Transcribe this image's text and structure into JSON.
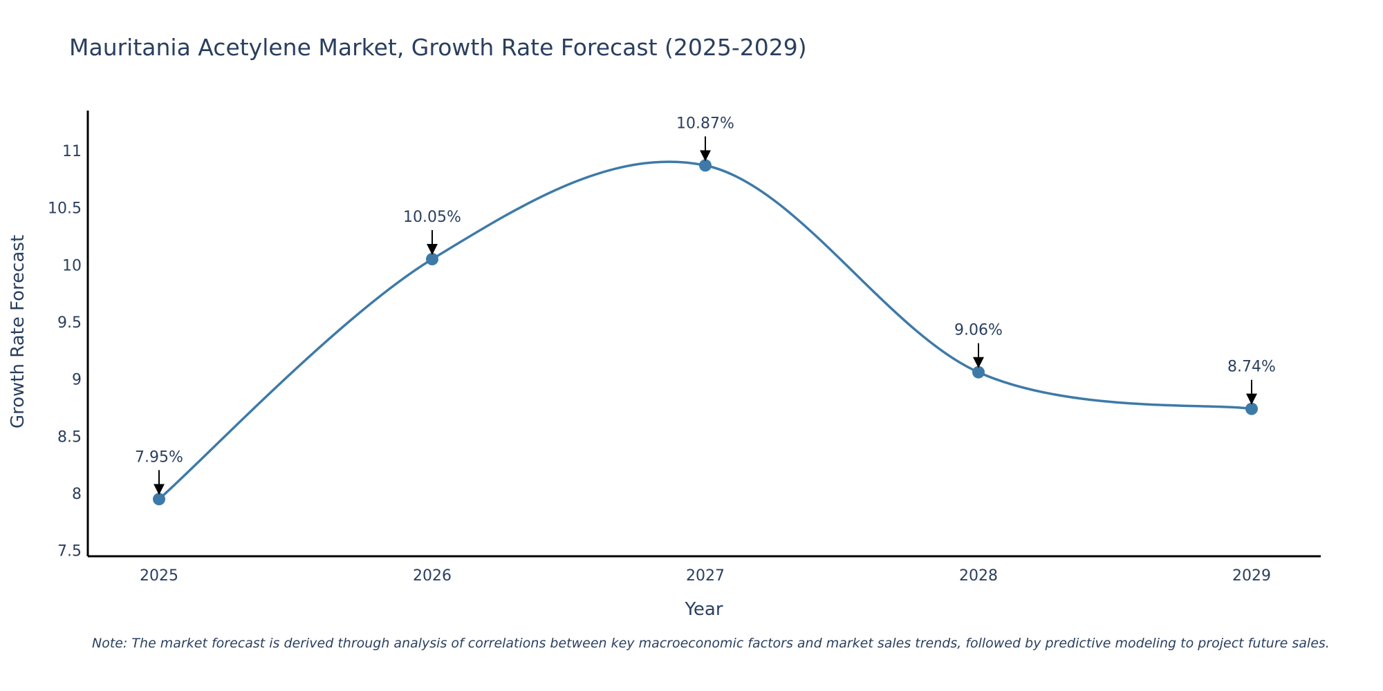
{
  "chart_data": {
    "type": "line",
    "title": "Mauritania Acetylene Market, Growth Rate Forecast (2025-2029)",
    "xlabel": "Year",
    "ylabel": "Growth Rate Forecast",
    "categories": [
      "2025",
      "2026",
      "2027",
      "2028",
      "2029"
    ],
    "values": [
      7.95,
      10.05,
      10.87,
      9.06,
      8.74
    ],
    "labels": [
      "7.95%",
      "10.05%",
      "10.87%",
      "9.06%",
      "8.74%"
    ],
    "ylim": [
      7.45,
      11.35
    ],
    "yticks": [
      7.5,
      8,
      8.5,
      9,
      9.5,
      10,
      10.5,
      11
    ],
    "ytick_labels": [
      "7.5",
      "8",
      "8.5",
      "9",
      "9.5",
      "10",
      "10.5",
      "11"
    ],
    "line_shape": "spline",
    "grid": false,
    "legend": false
  },
  "note": "Note: The market forecast is derived through analysis of correlations between key macroeconomic factors and market sales trends, followed by predictive modeling to project future sales.",
  "colors": {
    "line": "#3d7aa8",
    "marker": "#3d7aa8",
    "text": "#2a3f5f",
    "axis": "#000000",
    "arrow": "#000000"
  }
}
